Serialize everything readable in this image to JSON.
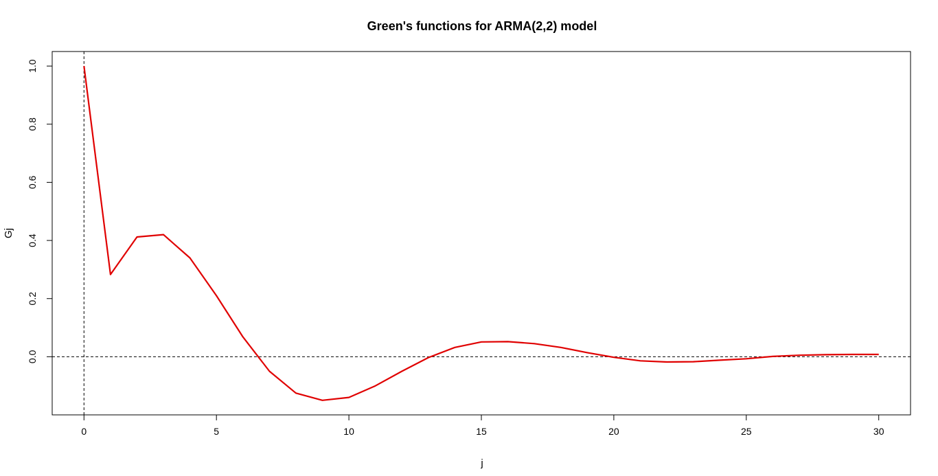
{
  "chart_data": {
    "type": "line",
    "title": "Green's functions for ARMA(2,2) model",
    "xlabel": "j",
    "ylabel": "Gj",
    "xlim": [
      -1.2,
      31.2
    ],
    "ylim": [
      -0.2,
      1.05
    ],
    "x_ticks": [
      0,
      5,
      10,
      15,
      20,
      25,
      30
    ],
    "y_ticks": [
      0.0,
      0.2,
      0.4,
      0.6,
      0.8,
      1.0
    ],
    "x_tick_labels": [
      "0",
      "5",
      "10",
      "15",
      "20",
      "25",
      "30"
    ],
    "y_tick_labels": [
      "0.0",
      "0.2",
      "0.4",
      "0.6",
      "0.8",
      "1.0"
    ],
    "reference_lines": {
      "horizontal_y": 0,
      "vertical_x": 0,
      "style": "dashed"
    },
    "grid": false,
    "series": [
      {
        "color": "#e00000",
        "x": [
          0,
          1,
          2,
          3,
          4,
          5,
          6,
          7,
          8,
          9,
          10,
          11,
          12,
          13,
          14,
          15,
          16,
          17,
          18,
          19,
          20,
          21,
          22,
          23,
          24,
          25,
          26,
          27,
          28,
          29,
          30
        ],
        "y": [
          1.0,
          0.283,
          0.412,
          0.42,
          0.34,
          0.21,
          0.068,
          -0.05,
          -0.125,
          -0.15,
          -0.14,
          -0.1,
          -0.05,
          -0.003,
          0.032,
          0.051,
          0.052,
          0.045,
          0.032,
          0.014,
          -0.002,
          -0.014,
          -0.018,
          -0.017,
          -0.012,
          -0.007,
          0.001,
          0.005,
          0.007,
          0.008,
          0.008
        ]
      }
    ]
  }
}
